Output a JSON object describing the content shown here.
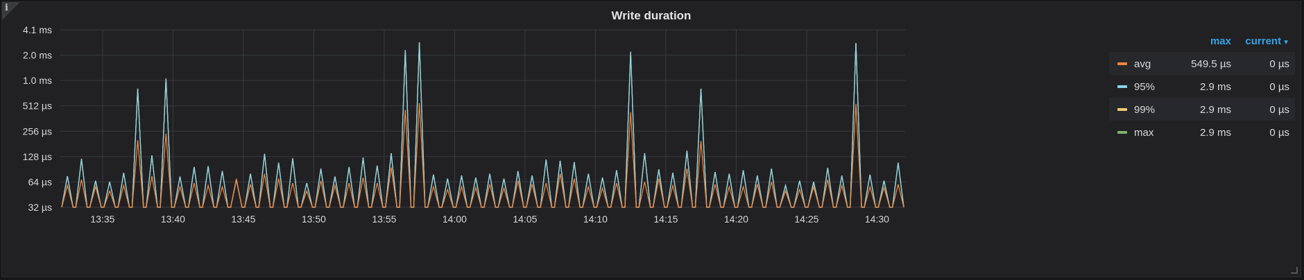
{
  "panel": {
    "title": "Write duration",
    "info_icon": "i"
  },
  "chart_data": {
    "type": "line",
    "title": "Write duration",
    "y_scale": "log2",
    "y_ticks_us": [
      32,
      64,
      128,
      256,
      512,
      1024,
      2048,
      4096
    ],
    "y_tick_labels": [
      "32 µs",
      "64 µs",
      "128 µs",
      "256 µs",
      "512 µs",
      "1.0 ms",
      "2.0 ms",
      "4.1 ms"
    ],
    "x_tick_labels": [
      "13:35",
      "13:40",
      "13:45",
      "13:50",
      "13:55",
      "14:00",
      "14:05",
      "14:10",
      "14:15",
      "14:20",
      "14:25",
      "14:30"
    ],
    "x_range_minutes": [
      "13:32",
      "14:32"
    ],
    "grid": true,
    "legend_placement": "right",
    "series": [
      {
        "name": "avg",
        "color": "#ef843c",
        "peaks": [
          {
            "t": "13:32.5",
            "v": 58
          },
          {
            "t": "13:33.5",
            "v": 68
          },
          {
            "t": "13:34.5",
            "v": 56
          },
          {
            "t": "13:35.5",
            "v": 50
          },
          {
            "t": "13:36.5",
            "v": 58
          },
          {
            "t": "13:37.5",
            "v": 200
          },
          {
            "t": "13:38.5",
            "v": 75
          },
          {
            "t": "13:39.5",
            "v": 240
          },
          {
            "t": "13:40.5",
            "v": 56
          },
          {
            "t": "13:41.5",
            "v": 62
          },
          {
            "t": "13:42.5",
            "v": 58
          },
          {
            "t": "13:43.5",
            "v": 56
          },
          {
            "t": "13:44.5",
            "v": 70
          },
          {
            "t": "13:45.5",
            "v": 60
          },
          {
            "t": "13:46.5",
            "v": 80
          },
          {
            "t": "13:47.5",
            "v": 70
          },
          {
            "t": "13:48.5",
            "v": 62
          },
          {
            "t": "13:49.5",
            "v": 50
          },
          {
            "t": "13:50.5",
            "v": 66
          },
          {
            "t": "13:51.5",
            "v": 58
          },
          {
            "t": "13:52.5",
            "v": 62
          },
          {
            "t": "13:53.5",
            "v": 72
          },
          {
            "t": "13:54.5",
            "v": 62
          },
          {
            "t": "13:55.5",
            "v": 95
          },
          {
            "t": "13:56.5",
            "v": 460
          },
          {
            "t": "13:57.5",
            "v": 550
          },
          {
            "t": "13:58.5",
            "v": 56
          },
          {
            "t": "13:59.5",
            "v": 52
          },
          {
            "t": "14:00.5",
            "v": 56
          },
          {
            "t": "14:01.5",
            "v": 55
          },
          {
            "t": "14:02.5",
            "v": 60
          },
          {
            "t": "14:03.5",
            "v": 54
          },
          {
            "t": "14:04.5",
            "v": 66
          },
          {
            "t": "14:05.5",
            "v": 60
          },
          {
            "t": "14:06.5",
            "v": 62
          },
          {
            "t": "14:07.5",
            "v": 80
          },
          {
            "t": "14:08.5",
            "v": 70
          },
          {
            "t": "14:09.5",
            "v": 56
          },
          {
            "t": "14:10.5",
            "v": 54
          },
          {
            "t": "14:11.5",
            "v": 62
          },
          {
            "t": "14:12.5",
            "v": 430
          },
          {
            "t": "14:13.5",
            "v": 64
          },
          {
            "t": "14:14.5",
            "v": 70
          },
          {
            "t": "14:15.5",
            "v": 58
          },
          {
            "t": "14:16.5",
            "v": 92
          },
          {
            "t": "14:17.5",
            "v": 195
          },
          {
            "t": "14:18.5",
            "v": 60
          },
          {
            "t": "14:19.5",
            "v": 56
          },
          {
            "t": "14:20.5",
            "v": 56
          },
          {
            "t": "14:21.5",
            "v": 60
          },
          {
            "t": "14:22.5",
            "v": 64
          },
          {
            "t": "14:23.5",
            "v": 50
          },
          {
            "t": "14:24.5",
            "v": 52
          },
          {
            "t": "14:25.5",
            "v": 56
          },
          {
            "t": "14:26.5",
            "v": 68
          },
          {
            "t": "14:27.5",
            "v": 58
          },
          {
            "t": "14:28.5",
            "v": 540
          },
          {
            "t": "14:29.5",
            "v": 56
          },
          {
            "t": "14:30.5",
            "v": 55
          },
          {
            "t": "14:31.5",
            "v": 60
          }
        ]
      },
      {
        "name": "95%",
        "color": "#8ad3e8",
        "peaks": [
          {
            "t": "13:32.5",
            "v": 75
          },
          {
            "t": "13:33.5",
            "v": 120
          },
          {
            "t": "13:34.5",
            "v": 66
          },
          {
            "t": "13:35.5",
            "v": 64
          },
          {
            "t": "13:36.5",
            "v": 82
          },
          {
            "t": "13:37.5",
            "v": 820
          },
          {
            "t": "13:38.5",
            "v": 132
          },
          {
            "t": "13:39.5",
            "v": 1080
          },
          {
            "t": "13:40.5",
            "v": 74
          },
          {
            "t": "13:41.5",
            "v": 96
          },
          {
            "t": "13:42.5",
            "v": 98
          },
          {
            "t": "13:43.5",
            "v": 86
          },
          {
            "t": "13:44.5",
            "v": 68
          },
          {
            "t": "13:45.5",
            "v": 80
          },
          {
            "t": "13:46.5",
            "v": 138
          },
          {
            "t": "13:47.5",
            "v": 108
          },
          {
            "t": "13:48.5",
            "v": 122
          },
          {
            "t": "13:49.5",
            "v": 62
          },
          {
            "t": "13:50.5",
            "v": 92
          },
          {
            "t": "13:51.5",
            "v": 74
          },
          {
            "t": "13:52.5",
            "v": 96
          },
          {
            "t": "13:53.5",
            "v": 124
          },
          {
            "t": "13:54.5",
            "v": 100
          },
          {
            "t": "13:55.5",
            "v": 140
          },
          {
            "t": "13:56.5",
            "v": 2350
          },
          {
            "t": "13:57.5",
            "v": 2900
          },
          {
            "t": "13:58.5",
            "v": 78
          },
          {
            "t": "13:59.5",
            "v": 70
          },
          {
            "t": "14:00.5",
            "v": 76
          },
          {
            "t": "14:01.5",
            "v": 72
          },
          {
            "t": "14:02.5",
            "v": 80
          },
          {
            "t": "14:03.5",
            "v": 70
          },
          {
            "t": "14:04.5",
            "v": 86
          },
          {
            "t": "14:05.5",
            "v": 76
          },
          {
            "t": "14:06.5",
            "v": 118
          },
          {
            "t": "14:07.5",
            "v": 114
          },
          {
            "t": "14:08.5",
            "v": 110
          },
          {
            "t": "14:09.5",
            "v": 80
          },
          {
            "t": "14:10.5",
            "v": 72
          },
          {
            "t": "14:11.5",
            "v": 88
          },
          {
            "t": "14:12.5",
            "v": 2250
          },
          {
            "t": "14:13.5",
            "v": 140
          },
          {
            "t": "14:14.5",
            "v": 90
          },
          {
            "t": "14:15.5",
            "v": 82
          },
          {
            "t": "14:16.5",
            "v": 150
          },
          {
            "t": "14:17.5",
            "v": 820
          },
          {
            "t": "14:18.5",
            "v": 84
          },
          {
            "t": "14:19.5",
            "v": 80
          },
          {
            "t": "14:20.5",
            "v": 88
          },
          {
            "t": "14:21.5",
            "v": 76
          },
          {
            "t": "14:22.5",
            "v": 92
          },
          {
            "t": "14:23.5",
            "v": 58
          },
          {
            "t": "14:24.5",
            "v": 66
          },
          {
            "t": "14:25.5",
            "v": 64
          },
          {
            "t": "14:26.5",
            "v": 94
          },
          {
            "t": "14:27.5",
            "v": 76
          },
          {
            "t": "14:28.5",
            "v": 2850
          },
          {
            "t": "14:29.5",
            "v": 78
          },
          {
            "t": "14:30.5",
            "v": 66
          },
          {
            "t": "14:31.5",
            "v": 108
          }
        ]
      },
      {
        "name": "99%",
        "color": "#f2c96d",
        "peaks": [
          {
            "t": "13:32.5",
            "v": 75
          },
          {
            "t": "13:33.5",
            "v": 120
          },
          {
            "t": "13:34.5",
            "v": 66
          },
          {
            "t": "13:35.5",
            "v": 64
          },
          {
            "t": "13:36.5",
            "v": 82
          },
          {
            "t": "13:37.5",
            "v": 820
          },
          {
            "t": "13:38.5",
            "v": 132
          },
          {
            "t": "13:39.5",
            "v": 1080
          },
          {
            "t": "13:40.5",
            "v": 74
          },
          {
            "t": "13:41.5",
            "v": 96
          },
          {
            "t": "13:42.5",
            "v": 98
          },
          {
            "t": "13:43.5",
            "v": 86
          },
          {
            "t": "13:44.5",
            "v": 68
          },
          {
            "t": "13:45.5",
            "v": 80
          },
          {
            "t": "13:46.5",
            "v": 138
          },
          {
            "t": "13:47.5",
            "v": 108
          },
          {
            "t": "13:48.5",
            "v": 122
          },
          {
            "t": "13:49.5",
            "v": 62
          },
          {
            "t": "13:50.5",
            "v": 92
          },
          {
            "t": "13:51.5",
            "v": 74
          },
          {
            "t": "13:52.5",
            "v": 96
          },
          {
            "t": "13:53.5",
            "v": 124
          },
          {
            "t": "13:54.5",
            "v": 100
          },
          {
            "t": "13:55.5",
            "v": 140
          },
          {
            "t": "13:56.5",
            "v": 2350
          },
          {
            "t": "13:57.5",
            "v": 2900
          },
          {
            "t": "13:58.5",
            "v": 78
          },
          {
            "t": "13:59.5",
            "v": 70
          },
          {
            "t": "14:00.5",
            "v": 76
          },
          {
            "t": "14:01.5",
            "v": 72
          },
          {
            "t": "14:02.5",
            "v": 80
          },
          {
            "t": "14:03.5",
            "v": 70
          },
          {
            "t": "14:04.5",
            "v": 86
          },
          {
            "t": "14:05.5",
            "v": 76
          },
          {
            "t": "14:06.5",
            "v": 118
          },
          {
            "t": "14:07.5",
            "v": 114
          },
          {
            "t": "14:08.5",
            "v": 110
          },
          {
            "t": "14:09.5",
            "v": 80
          },
          {
            "t": "14:10.5",
            "v": 72
          },
          {
            "t": "14:11.5",
            "v": 88
          },
          {
            "t": "14:12.5",
            "v": 2250
          },
          {
            "t": "14:13.5",
            "v": 140
          },
          {
            "t": "14:14.5",
            "v": 90
          },
          {
            "t": "14:15.5",
            "v": 82
          },
          {
            "t": "14:16.5",
            "v": 150
          },
          {
            "t": "14:17.5",
            "v": 820
          },
          {
            "t": "14:18.5",
            "v": 84
          },
          {
            "t": "14:19.5",
            "v": 80
          },
          {
            "t": "14:20.5",
            "v": 88
          },
          {
            "t": "14:21.5",
            "v": 76
          },
          {
            "t": "14:22.5",
            "v": 92
          },
          {
            "t": "14:23.5",
            "v": 58
          },
          {
            "t": "14:24.5",
            "v": 66
          },
          {
            "t": "14:25.5",
            "v": 64
          },
          {
            "t": "14:26.5",
            "v": 94
          },
          {
            "t": "14:27.5",
            "v": 76
          },
          {
            "t": "14:28.5",
            "v": 2850
          },
          {
            "t": "14:29.5",
            "v": 78
          },
          {
            "t": "14:30.5",
            "v": 66
          },
          {
            "t": "14:31.5",
            "v": 108
          }
        ]
      },
      {
        "name": "max",
        "color": "#7eb26d",
        "peaks": [
          {
            "t": "13:32.5",
            "v": 75
          },
          {
            "t": "13:33.5",
            "v": 120
          },
          {
            "t": "13:34.5",
            "v": 66
          },
          {
            "t": "13:35.5",
            "v": 64
          },
          {
            "t": "13:36.5",
            "v": 82
          },
          {
            "t": "13:37.5",
            "v": 820
          },
          {
            "t": "13:38.5",
            "v": 132
          },
          {
            "t": "13:39.5",
            "v": 1080
          },
          {
            "t": "13:40.5",
            "v": 74
          },
          {
            "t": "13:41.5",
            "v": 96
          },
          {
            "t": "13:42.5",
            "v": 98
          },
          {
            "t": "13:43.5",
            "v": 86
          },
          {
            "t": "13:44.5",
            "v": 68
          },
          {
            "t": "13:45.5",
            "v": 80
          },
          {
            "t": "13:46.5",
            "v": 138
          },
          {
            "t": "13:47.5",
            "v": 108
          },
          {
            "t": "13:48.5",
            "v": 122
          },
          {
            "t": "13:49.5",
            "v": 62
          },
          {
            "t": "13:50.5",
            "v": 92
          },
          {
            "t": "13:51.5",
            "v": 74
          },
          {
            "t": "13:52.5",
            "v": 96
          },
          {
            "t": "13:53.5",
            "v": 124
          },
          {
            "t": "13:54.5",
            "v": 100
          },
          {
            "t": "13:55.5",
            "v": 140
          },
          {
            "t": "13:56.5",
            "v": 2350
          },
          {
            "t": "13:57.5",
            "v": 2900
          },
          {
            "t": "13:58.5",
            "v": 78
          },
          {
            "t": "13:59.5",
            "v": 70
          },
          {
            "t": "14:00.5",
            "v": 76
          },
          {
            "t": "14:01.5",
            "v": 72
          },
          {
            "t": "14:02.5",
            "v": 80
          },
          {
            "t": "14:03.5",
            "v": 70
          },
          {
            "t": "14:04.5",
            "v": 86
          },
          {
            "t": "14:05.5",
            "v": 76
          },
          {
            "t": "14:06.5",
            "v": 118
          },
          {
            "t": "14:07.5",
            "v": 114
          },
          {
            "t": "14:08.5",
            "v": 110
          },
          {
            "t": "14:09.5",
            "v": 80
          },
          {
            "t": "14:10.5",
            "v": 72
          },
          {
            "t": "14:11.5",
            "v": 88
          },
          {
            "t": "14:12.5",
            "v": 2250
          },
          {
            "t": "14:13.5",
            "v": 140
          },
          {
            "t": "14:14.5",
            "v": 90
          },
          {
            "t": "14:15.5",
            "v": 82
          },
          {
            "t": "14:16.5",
            "v": 150
          },
          {
            "t": "14:17.5",
            "v": 820
          },
          {
            "t": "14:18.5",
            "v": 84
          },
          {
            "t": "14:19.5",
            "v": 80
          },
          {
            "t": "14:20.5",
            "v": 88
          },
          {
            "t": "14:21.5",
            "v": 76
          },
          {
            "t": "14:22.5",
            "v": 92
          },
          {
            "t": "14:23.5",
            "v": 58
          },
          {
            "t": "14:24.5",
            "v": 66
          },
          {
            "t": "14:25.5",
            "v": 64
          },
          {
            "t": "14:26.5",
            "v": 94
          },
          {
            "t": "14:27.5",
            "v": 76
          },
          {
            "t": "14:28.5",
            "v": 2850
          },
          {
            "t": "14:29.5",
            "v": 78
          },
          {
            "t": "14:30.5",
            "v": 66
          },
          {
            "t": "14:31.5",
            "v": 108
          }
        ]
      }
    ]
  },
  "legend": {
    "header_max": "max",
    "header_current": "current",
    "sort_icon": "caret-down-icon",
    "items": [
      {
        "name": "avg",
        "color": "#ef843c",
        "max": "549.5 µs",
        "current": "0 µs"
      },
      {
        "name": "95%",
        "color": "#8ad3e8",
        "max": "2.9 ms",
        "current": "0 µs"
      },
      {
        "name": "99%",
        "color": "#f2c96d",
        "max": "2.9 ms",
        "current": "0 µs"
      },
      {
        "name": "max",
        "color": "#7eb26d",
        "max": "2.9 ms",
        "current": "0 µs"
      }
    ]
  }
}
